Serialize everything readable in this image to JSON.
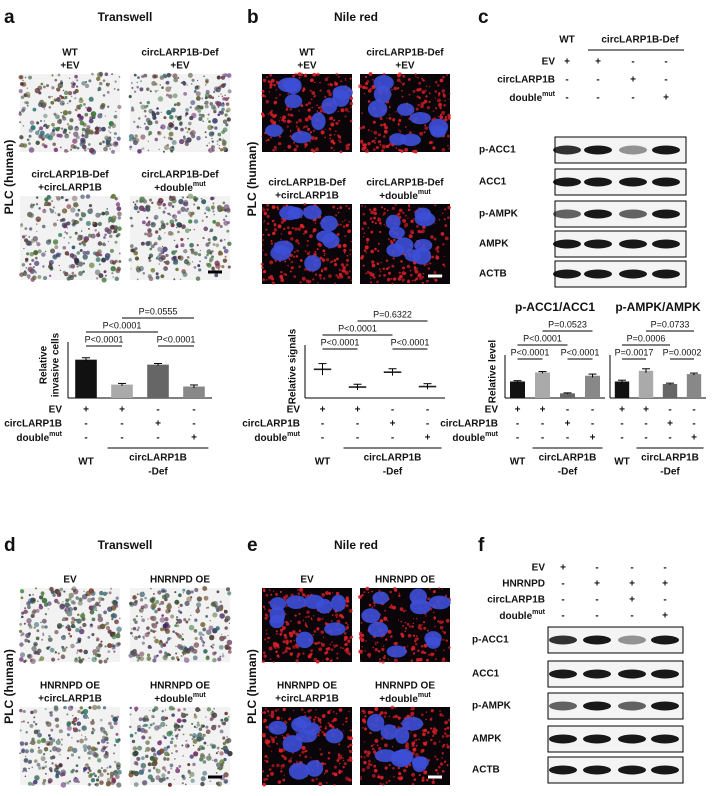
{
  "a": {
    "letter": "a",
    "title": "Transwell",
    "side_label": "PLC (human)",
    "images": [
      {
        "lines": [
          "WT",
          "+EV"
        ]
      },
      {
        "lines": [
          "circLARP1B-Def",
          "+EV"
        ]
      },
      {
        "lines": [
          "circLARP1B-Def",
          "+circLARP1B"
        ]
      },
      {
        "lines": [
          "circLARP1B-Def",
          {
            "text": "+double",
            "sup": "mut"
          }
        ]
      }
    ],
    "chart": {
      "type": "bar",
      "y_label": [
        "Relative",
        "invasive cells"
      ],
      "values": [
        1.0,
        0.35,
        0.87,
        0.3
      ],
      "errors": [
        0.05,
        0.03,
        0.03,
        0.04
      ],
      "colors": [
        "#111111",
        "#aaaaaa",
        "#666666",
        "#888888"
      ],
      "ylim": [
        0,
        1.2
      ],
      "comparisons": [
        {
          "groups": [
            0,
            1
          ],
          "label": "P<0.0001"
        },
        {
          "groups": [
            0,
            2
          ],
          "label": "P<0.0001"
        },
        {
          "groups": [
            1,
            3
          ],
          "label": "P=0.0555"
        },
        {
          "groups": [
            2,
            3
          ],
          "label": "P<0.0001"
        }
      ],
      "treatment_names": [
        "EV",
        "circLARP1B",
        {
          "text": "double",
          "sup": "mut"
        }
      ],
      "treatment_marks": [
        [
          "+",
          "+",
          "-",
          "-"
        ],
        [
          "-",
          "-",
          "+",
          "-"
        ],
        [
          "-",
          "-",
          "-",
          "+"
        ]
      ],
      "groups": [
        "WT",
        [
          "circLARP1B",
          "-Def"
        ]
      ]
    }
  },
  "b": {
    "letter": "b",
    "title": "Nile red",
    "side_label": "PLC (human)",
    "images": [
      {
        "lines": [
          "WT",
          "+EV"
        ]
      },
      {
        "lines": [
          "circLARP1B-Def",
          "+EV"
        ]
      },
      {
        "lines": [
          "circLARP1B-Def",
          "+circLARP1B"
        ]
      },
      {
        "lines": [
          "circLARP1B-Def",
          {
            "text": "+double",
            "sup": "mut"
          }
        ]
      }
    ],
    "chart": {
      "type": "dot",
      "y_label": [
        "Relative signals"
      ],
      "values": [
        1.0,
        0.38,
        0.9,
        0.4
      ],
      "errors": [
        0.2,
        0.1,
        0.12,
        0.1
      ],
      "color": "#222222",
      "ylim": [
        0,
        1.5
      ],
      "comparisons": [
        {
          "groups": [
            0,
            1
          ],
          "label": "P<0.0001"
        },
        {
          "groups": [
            0,
            2
          ],
          "label": "P<0.0001"
        },
        {
          "groups": [
            1,
            3
          ],
          "label": "P=0.6322"
        },
        {
          "groups": [
            2,
            3
          ],
          "label": "P<0.0001"
        }
      ],
      "treatment_names": [
        "EV",
        "circLARP1B",
        {
          "text": "double",
          "sup": "mut"
        }
      ],
      "treatment_marks": [
        [
          "+",
          "+",
          "-",
          "-"
        ],
        [
          "-",
          "-",
          "+",
          "-"
        ],
        [
          "-",
          "-",
          "-",
          "+"
        ]
      ],
      "groups": [
        "WT",
        [
          "circLARP1B",
          "-Def"
        ]
      ]
    }
  },
  "c": {
    "letter": "c",
    "blot": {
      "header": [
        "WT",
        "circLARP1B-Def"
      ],
      "treatments": [
        {
          "name": "EV",
          "marks": [
            "+",
            "+",
            "-",
            "-"
          ]
        },
        {
          "name": "circLARP1B",
          "marks": [
            "-",
            "-",
            "+",
            "-"
          ]
        },
        {
          "name": {
            "text": "double",
            "sup": "mut"
          },
          "marks": [
            "-",
            "-",
            "-",
            "+"
          ]
        }
      ],
      "rows": [
        "p-ACC1",
        "ACC1",
        "p-AMPK",
        "AMPK",
        "ACTB"
      ]
    },
    "charts": [
      {
        "type": "bar",
        "title": "p-ACC1/ACC1",
        "y_label": [
          "Relative level"
        ],
        "values": [
          1.0,
          1.55,
          0.28,
          1.35
        ],
        "errors": [
          0.05,
          0.05,
          0.03,
          0.1
        ],
        "colors": [
          "#111111",
          "#aaaaaa",
          "#666666",
          "#888888"
        ],
        "ylim": [
          0,
          2
        ],
        "comparisons": [
          {
            "groups": [
              0,
              1
            ],
            "label": "P<0.0001"
          },
          {
            "groups": [
              0,
              2
            ],
            "label": "P<0.0001"
          },
          {
            "groups": [
              1,
              3
            ],
            "label": "P=0.0523"
          },
          {
            "groups": [
              2,
              3
            ],
            "label": "P<0.0001"
          }
        ],
        "treatment_names": [
          "EV",
          "circLARP1B",
          {
            "text": "double",
            "sup": "mut"
          }
        ],
        "treatment_marks": [
          [
            "+",
            "+",
            "-",
            "-"
          ],
          [
            "-",
            "-",
            "+",
            "-"
          ],
          [
            "-",
            "-",
            "-",
            "+"
          ]
        ],
        "groups": [
          "WT",
          [
            "circLARP1B",
            "-Def"
          ]
        ]
      },
      {
        "type": "bar",
        "title": "p-AMPK/AMPK",
        "values": [
          1.0,
          1.65,
          0.85,
          1.45
        ],
        "errors": [
          0.08,
          0.12,
          0.05,
          0.06
        ],
        "colors": [
          "#111111",
          "#aaaaaa",
          "#666666",
          "#888888"
        ],
        "ylim": [
          0,
          2
        ],
        "comparisons": [
          {
            "groups": [
              0,
              1
            ],
            "label": "P=0.0017"
          },
          {
            "groups": [
              0,
              2
            ],
            "label": "P=0.0006"
          },
          {
            "groups": [
              1,
              3
            ],
            "label": "P=0.0733"
          },
          {
            "groups": [
              2,
              3
            ],
            "label": "P=0.0002"
          }
        ],
        "treatment_marks": [
          [
            "+",
            "+",
            "-",
            "-"
          ],
          [
            "-",
            "-",
            "+",
            "-"
          ],
          [
            "-",
            "-",
            "-",
            "+"
          ]
        ],
        "groups": [
          "WT",
          [
            "circLARP1B",
            "-Def"
          ]
        ]
      }
    ]
  },
  "d": {
    "letter": "d",
    "title": "Transwell",
    "side_label": "PLC (human)",
    "images": [
      {
        "lines": [
          "EV"
        ]
      },
      {
        "lines": [
          "HNRNPD OE"
        ]
      },
      {
        "lines": [
          "HNRNPD OE",
          "+circLARP1B"
        ]
      },
      {
        "lines": [
          "HNRNPD OE",
          {
            "text": "+double",
            "sup": "mut"
          }
        ]
      }
    ]
  },
  "e": {
    "letter": "e",
    "title": "Nile red",
    "side_label": "PLC (human)",
    "images": [
      {
        "lines": [
          "EV"
        ]
      },
      {
        "lines": [
          "HNRNPD OE"
        ]
      },
      {
        "lines": [
          "HNRNPD OE",
          "+circLARP1B"
        ]
      },
      {
        "lines": [
          "HNRNPD OE",
          {
            "text": "+double",
            "sup": "mut"
          }
        ]
      }
    ]
  },
  "f": {
    "letter": "f",
    "blot": {
      "treatments": [
        {
          "name": "EV",
          "marks": [
            "+",
            "-",
            "-",
            "-"
          ]
        },
        {
          "name": "HNRNPD",
          "marks": [
            "-",
            "+",
            "+",
            "+"
          ]
        },
        {
          "name": "circLARP1B",
          "marks": [
            "-",
            "-",
            "+",
            "-"
          ]
        },
        {
          "name": {
            "text": "double",
            "sup": "mut"
          },
          "marks": [
            "-",
            "-",
            "-",
            "+"
          ]
        }
      ],
      "rows": [
        "p-ACC1",
        "ACC1",
        "p-AMPK",
        "AMPK",
        "ACTB"
      ]
    }
  }
}
